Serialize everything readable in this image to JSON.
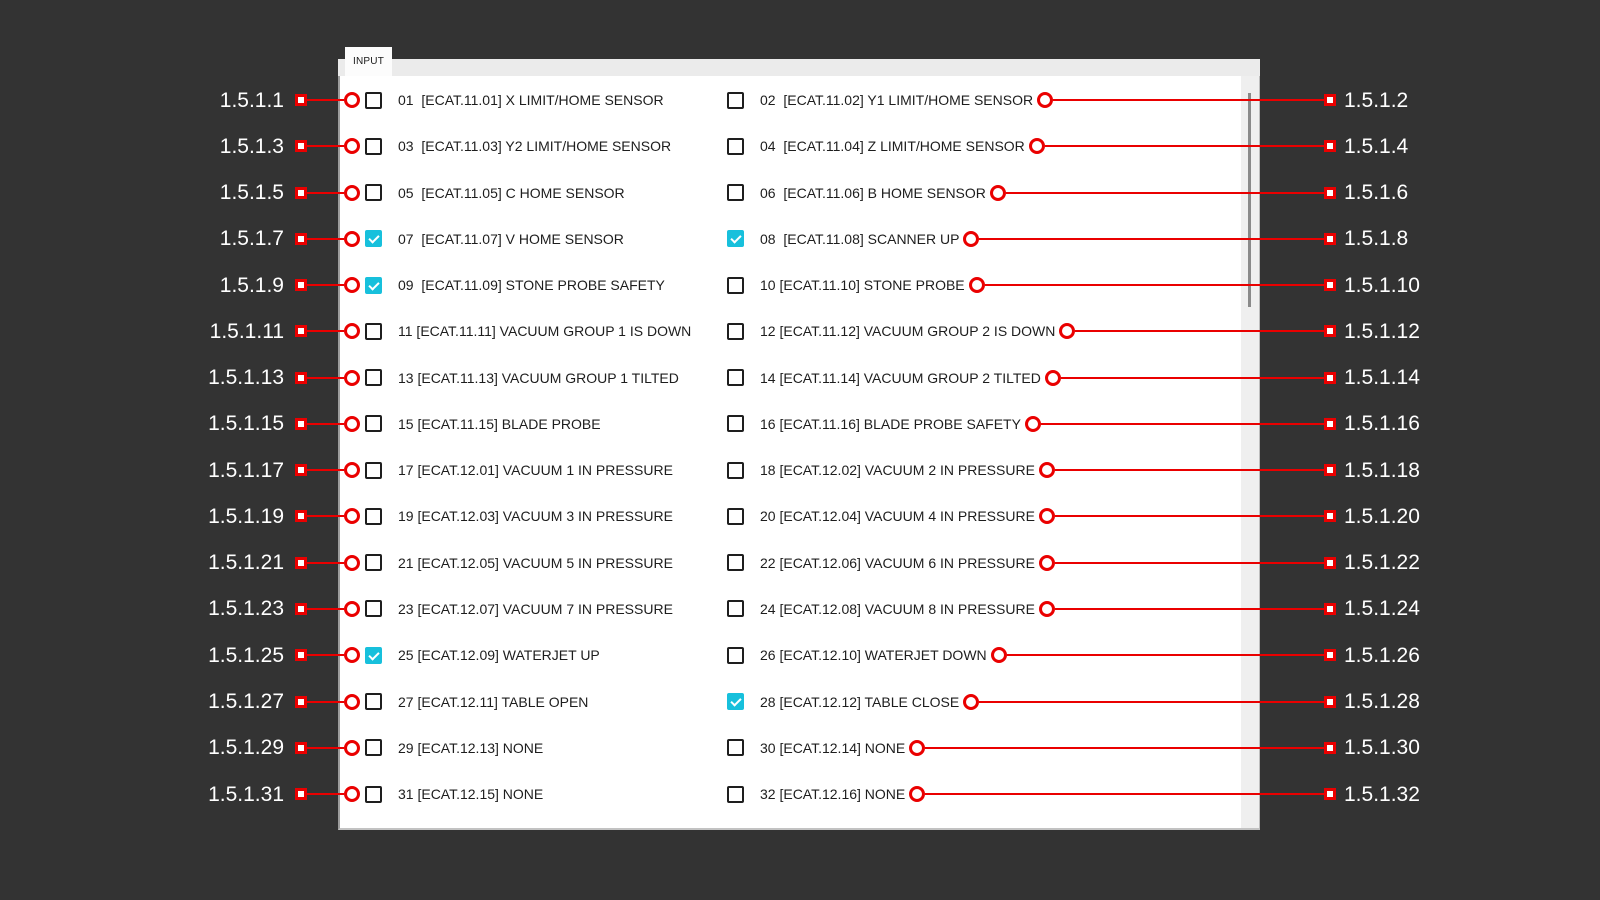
{
  "background_color": "#333333",
  "accent_red": "#ea0000",
  "check_color": "#17c0dc",
  "panel": {
    "tab_label": "INPUT",
    "scrollbar": {
      "visible": true
    }
  },
  "rows": [
    {
      "left": {
        "annotation": "1.5.1.1",
        "checked": false,
        "text": "01  [ECAT.11.01] X LIMIT/HOME SENSOR"
      },
      "right": {
        "annotation": "1.5.1.2",
        "checked": false,
        "text": "02  [ECAT.11.02] Y1 LIMIT/HOME SENSOR"
      }
    },
    {
      "left": {
        "annotation": "1.5.1.3",
        "checked": false,
        "text": "03  [ECAT.11.03] Y2 LIMIT/HOME SENSOR"
      },
      "right": {
        "annotation": "1.5.1.4",
        "checked": false,
        "text": "04  [ECAT.11.04] Z LIMIT/HOME SENSOR"
      }
    },
    {
      "left": {
        "annotation": "1.5.1.5",
        "checked": false,
        "text": "05  [ECAT.11.05] C HOME SENSOR"
      },
      "right": {
        "annotation": "1.5.1.6",
        "checked": false,
        "text": "06  [ECAT.11.06] B HOME SENSOR"
      }
    },
    {
      "left": {
        "annotation": "1.5.1.7",
        "checked": true,
        "text": "07  [ECAT.11.07] V HOME SENSOR"
      },
      "right": {
        "annotation": "1.5.1.8",
        "checked": true,
        "text": "08  [ECAT.11.08] SCANNER UP"
      }
    },
    {
      "left": {
        "annotation": "1.5.1.9",
        "checked": true,
        "text": "09  [ECAT.11.09] STONE PROBE SAFETY"
      },
      "right": {
        "annotation": "1.5.1.10",
        "checked": false,
        "text": "10 [ECAT.11.10] STONE PROBE"
      }
    },
    {
      "left": {
        "annotation": "1.5.1.11",
        "checked": false,
        "text": "11 [ECAT.11.11] VACUUM GROUP 1 IS DOWN"
      },
      "right": {
        "annotation": "1.5.1.12",
        "checked": false,
        "text": "12 [ECAT.11.12] VACUUM GROUP 2 IS DOWN"
      }
    },
    {
      "left": {
        "annotation": "1.5.1.13",
        "checked": false,
        "text": "13 [ECAT.11.13] VACUUM GROUP 1 TILTED"
      },
      "right": {
        "annotation": "1.5.1.14",
        "checked": false,
        "text": "14 [ECAT.11.14] VACUUM GROUP 2 TILTED"
      }
    },
    {
      "left": {
        "annotation": "1.5.1.15",
        "checked": false,
        "text": "15 [ECAT.11.15] BLADE PROBE"
      },
      "right": {
        "annotation": "1.5.1.16",
        "checked": false,
        "text": "16 [ECAT.11.16] BLADE PROBE SAFETY"
      }
    },
    {
      "left": {
        "annotation": "1.5.1.17",
        "checked": false,
        "text": "17 [ECAT.12.01] VACUUM 1 IN PRESSURE"
      },
      "right": {
        "annotation": "1.5.1.18",
        "checked": false,
        "text": "18 [ECAT.12.02] VACUUM 2 IN PRESSURE"
      }
    },
    {
      "left": {
        "annotation": "1.5.1.19",
        "checked": false,
        "text": "19 [ECAT.12.03] VACUUM 3 IN PRESSURE"
      },
      "right": {
        "annotation": "1.5.1.20",
        "checked": false,
        "text": "20 [ECAT.12.04] VACUUM 4 IN PRESSURE"
      }
    },
    {
      "left": {
        "annotation": "1.5.1.21",
        "checked": false,
        "text": "21 [ECAT.12.05] VACUUM 5 IN PRESSURE"
      },
      "right": {
        "annotation": "1.5.1.22",
        "checked": false,
        "text": "22 [ECAT.12.06] VACUUM 6 IN PRESSURE"
      }
    },
    {
      "left": {
        "annotation": "1.5.1.23",
        "checked": false,
        "text": "23 [ECAT.12.07] VACUUM 7 IN PRESSURE"
      },
      "right": {
        "annotation": "1.5.1.24",
        "checked": false,
        "text": "24 [ECAT.12.08] VACUUM 8 IN PRESSURE"
      }
    },
    {
      "left": {
        "annotation": "1.5.1.25",
        "checked": true,
        "text": "25 [ECAT.12.09] WATERJET UP"
      },
      "right": {
        "annotation": "1.5.1.26",
        "checked": false,
        "text": "26 [ECAT.12.10] WATERJET DOWN"
      }
    },
    {
      "left": {
        "annotation": "1.5.1.27",
        "checked": false,
        "text": "27 [ECAT.12.11] TABLE OPEN"
      },
      "right": {
        "annotation": "1.5.1.28",
        "checked": true,
        "text": "28 [ECAT.12.12] TABLE CLOSE"
      }
    },
    {
      "left": {
        "annotation": "1.5.1.29",
        "checked": false,
        "text": "29 [ECAT.12.13] NONE"
      },
      "right": {
        "annotation": "1.5.1.30",
        "checked": false,
        "text": "30 [ECAT.12.14] NONE"
      }
    },
    {
      "left": {
        "annotation": "1.5.1.31",
        "checked": false,
        "text": "31 [ECAT.12.15] NONE"
      },
      "right": {
        "annotation": "1.5.1.32",
        "checked": false,
        "text": "32 [ECAT.12.16] NONE"
      }
    }
  ]
}
